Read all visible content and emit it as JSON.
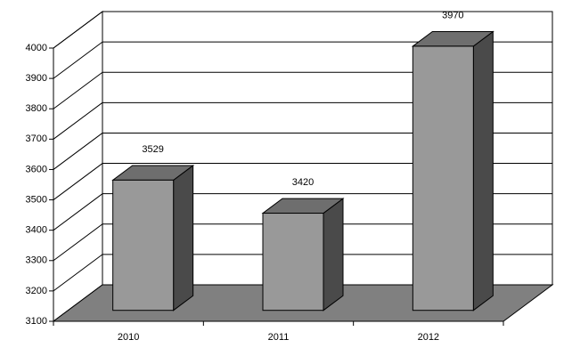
{
  "chart_data": {
    "type": "bar3d",
    "categories": [
      "2010",
      "2011",
      "2012"
    ],
    "values": [
      3529,
      3420,
      3970
    ],
    "ylim": [
      3100,
      4000
    ],
    "yticks": [
      3100,
      3200,
      3300,
      3400,
      3500,
      3600,
      3700,
      3800,
      3900,
      4000
    ],
    "grid": true,
    "color": "#999999"
  }
}
